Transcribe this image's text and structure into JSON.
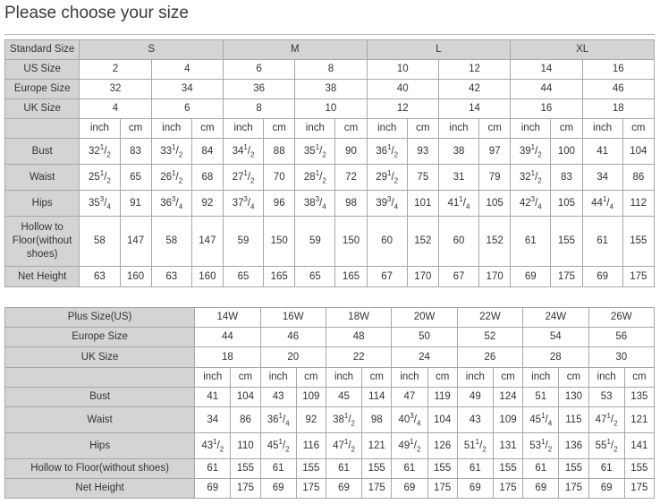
{
  "title": "Please choose your size",
  "table1": {
    "header": {
      "label": "Standard Size",
      "groups": [
        "S",
        "M",
        "L",
        "XL"
      ]
    },
    "size_rows": [
      {
        "label": "US Size",
        "values": [
          "2",
          "4",
          "6",
          "8",
          "10",
          "12",
          "14",
          "16"
        ]
      },
      {
        "label": "Europe Size",
        "values": [
          "32",
          "34",
          "36",
          "38",
          "40",
          "42",
          "44",
          "46"
        ]
      },
      {
        "label": "UK Size",
        "values": [
          "4",
          "6",
          "8",
          "10",
          "12",
          "14",
          "16",
          "18"
        ]
      }
    ],
    "units": [
      "inch",
      "cm"
    ],
    "measure_rows": [
      {
        "label": "Bust",
        "values": [
          "32 1/2",
          "83",
          "33 1/2",
          "84",
          "34 1/2",
          "88",
          "35 1/2",
          "90",
          "36 1/2",
          "93",
          "38",
          "97",
          "39 1/2",
          "100",
          "41",
          "104"
        ]
      },
      {
        "label": "Waist",
        "values": [
          "25 1/2",
          "65",
          "26 1/2",
          "68",
          "27 1/2",
          "70",
          "28 1/2",
          "72",
          "29 1/2",
          "75",
          "31",
          "79",
          "32 1/2",
          "83",
          "34",
          "86"
        ]
      },
      {
        "label": "Hips",
        "values": [
          "35 3/4",
          "91",
          "36 3/4",
          "92",
          "37 3/4",
          "96",
          "38 3/4",
          "98",
          "39 3/4",
          "101",
          "41 1/4",
          "105",
          "42 3/4",
          "105",
          "44 1/4",
          "112"
        ]
      },
      {
        "label": "Hollow to Floor(without shoes)",
        "values": [
          "58",
          "147",
          "58",
          "147",
          "59",
          "150",
          "59",
          "150",
          "60",
          "152",
          "60",
          "152",
          "61",
          "155",
          "61",
          "155"
        ]
      },
      {
        "label": "Net Height",
        "values": [
          "63",
          "160",
          "63",
          "160",
          "65",
          "165",
          "65",
          "165",
          "67",
          "170",
          "67",
          "170",
          "69",
          "175",
          "69",
          "175"
        ]
      }
    ]
  },
  "table2": {
    "size_rows": [
      {
        "label": "Plus Size(US)",
        "values": [
          "14W",
          "16W",
          "18W",
          "20W",
          "22W",
          "24W",
          "26W"
        ]
      },
      {
        "label": "Europe Size",
        "values": [
          "44",
          "46",
          "48",
          "50",
          "52",
          "54",
          "56"
        ]
      },
      {
        "label": "UK Size",
        "values": [
          "18",
          "20",
          "22",
          "24",
          "26",
          "28",
          "30"
        ]
      }
    ],
    "units": [
      "inch",
      "cm"
    ],
    "measure_rows": [
      {
        "label": "Bust",
        "values": [
          "41",
          "104",
          "43",
          "109",
          "45",
          "114",
          "47",
          "119",
          "49",
          "124",
          "51",
          "130",
          "53",
          "135"
        ]
      },
      {
        "label": "Waist",
        "values": [
          "34",
          "86",
          "36 1/4",
          "92",
          "38 1/2",
          "98",
          "40 3/4",
          "104",
          "43",
          "109",
          "45 1/4",
          "115",
          "47 1/2",
          "121"
        ]
      },
      {
        "label": "Hips",
        "values": [
          "43 1/2",
          "110",
          "45 1/2",
          "116",
          "47 1/2",
          "121",
          "49 1/2",
          "126",
          "51 1/2",
          "131",
          "53 1/2",
          "136",
          "55 1/2",
          "141"
        ]
      },
      {
        "label": "Hollow to Floor(without shoes)",
        "values": [
          "61",
          "155",
          "61",
          "155",
          "61",
          "155",
          "61",
          "155",
          "61",
          "155",
          "61",
          "155",
          "61",
          "155"
        ]
      },
      {
        "label": "Net Height",
        "values": [
          "69",
          "175",
          "69",
          "175",
          "69",
          "175",
          "69",
          "175",
          "69",
          "175",
          "69",
          "175",
          "69",
          "175"
        ]
      }
    ]
  },
  "colors": {
    "header_bg": "#d4d4d4",
    "border": "#a7a7a7",
    "text": "#333333"
  }
}
